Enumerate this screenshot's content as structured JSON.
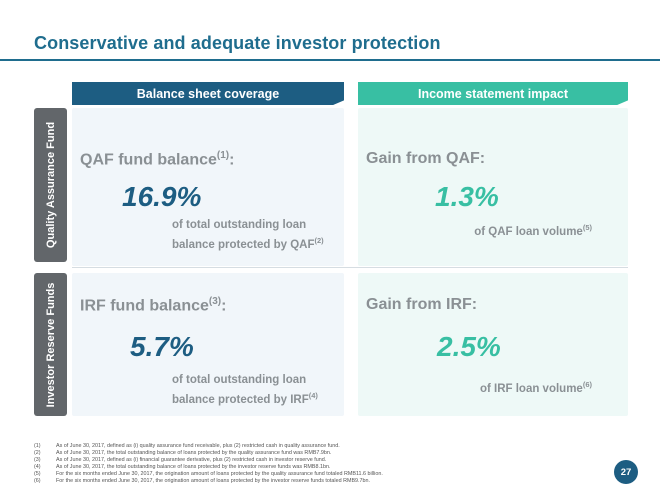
{
  "title": "Conservative and adequate investor protection",
  "columns": {
    "left": "Balance sheet coverage",
    "right": "Income statement impact"
  },
  "rows": {
    "top": "Quality Assurance Fund",
    "bottom": "Investor Reserve Funds"
  },
  "qaf_balance": {
    "label": "QAF fund balance",
    "label_ref": "(1)",
    "label_suffix": ":",
    "value": "16.9%",
    "desc_line1": "of total outstanding loan",
    "desc_line2": "balance protected by QAF",
    "desc_ref": "(2)"
  },
  "qaf_gain": {
    "label": "Gain from QAF:",
    "value": "1.3%",
    "desc": "of QAF loan volume",
    "desc_ref": "(5)"
  },
  "irf_balance": {
    "label": "IRF fund balance",
    "label_ref": "(3)",
    "label_suffix": ":",
    "value": "5.7%",
    "desc_line1": "of total outstanding loan",
    "desc_line2": "balance protected by IRF",
    "desc_ref": "(4)"
  },
  "irf_gain": {
    "label": "Gain from IRF:",
    "value": "2.5%",
    "desc": "of IRF loan volume",
    "desc_ref": "(6)"
  },
  "footnotes": [
    {
      "num": "(1)",
      "text": "As of June 30, 2017, defined as (i) quality assurance fund receivable, plus (2) restricted cash in quality assurance fund."
    },
    {
      "num": "(2)",
      "text": "As of June 30, 2017, the total outstanding balance of loans protected by the quality assurance fund was RMB7.9bn."
    },
    {
      "num": "(3)",
      "text": "As of June 30, 2017, defined as (i) financial guarantee derivative, plus (2) restricted cash in investor reserve fund."
    },
    {
      "num": "(4)",
      "text": "As of June 30, 2017, the total outstanding balance of loans protected by the investor reserve funds was RMB8.1bn."
    },
    {
      "num": "(5)",
      "text": "For the six months ended June 30, 2017, the origination amount of loans protected by the quality assurance fund totaled RMB11.6 billion."
    },
    {
      "num": "(6)",
      "text": "For the six months ended June 30, 2017, the origination amount of loans protected by the investor reserve funds totaled RMB9.7bn."
    }
  ],
  "page_number": "27",
  "colors": {
    "title": "#1f6d8e",
    "balance_sheet": "#1d5d82",
    "income_statement": "#38bfa3",
    "row_tab": "#62666a"
  }
}
